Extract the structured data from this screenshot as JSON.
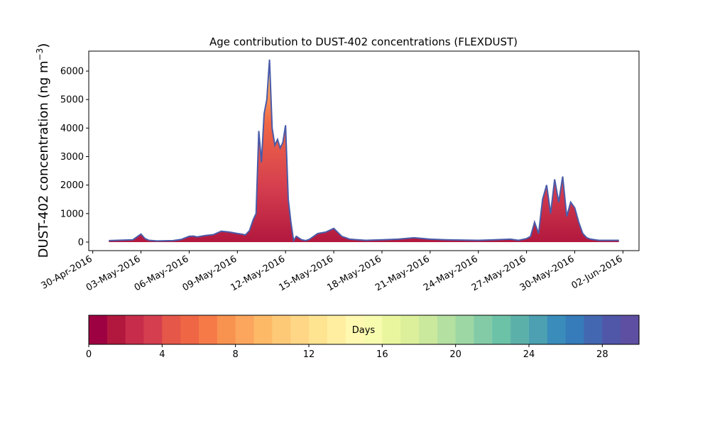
{
  "chart_data": {
    "type": "area",
    "title": "Age contribution to DUST-402 concentrations (FLEXDUST)",
    "ylabel": "DUST-402 concentration (ng m",
    "ylabel_sup": "−3",
    "ylabel_close": ")",
    "ylim": [
      -300,
      6700
    ],
    "yticks": [
      0,
      1000,
      2000,
      3000,
      4000,
      5000,
      6000
    ],
    "xlim": [
      "2016-04-29T18:00",
      "2016-06-03T00:00"
    ],
    "xticks": [
      "30-Apr-2016",
      "03-May-2016",
      "06-May-2016",
      "09-May-2016",
      "12-May-2016",
      "15-May-2016",
      "18-May-2016",
      "21-May-2016",
      "24-May-2016",
      "27-May-2016",
      "30-May-2016",
      "02-Jun-2016"
    ],
    "grid": false,
    "series_description": "stacked contributions by particle age (days 0-30)",
    "total": {
      "x": [
        "2016-05-01T00:00",
        "2016-05-01T12:00",
        "2016-05-02T00:00",
        "2016-05-02T12:00",
        "2016-05-03T00:00",
        "2016-05-03T06:00",
        "2016-05-03T12:00",
        "2016-05-04T00:00",
        "2016-05-05T00:00",
        "2016-05-05T12:00",
        "2016-05-06T00:00",
        "2016-05-06T06:00",
        "2016-05-06T12:00",
        "2016-05-07T00:00",
        "2016-05-07T12:00",
        "2016-05-08T00:00",
        "2016-05-08T12:00",
        "2016-05-09T00:00",
        "2016-05-09T06:00",
        "2016-05-09T12:00",
        "2016-05-09T18:00",
        "2016-05-10T00:00",
        "2016-05-10T04:00",
        "2016-05-10T08:00",
        "2016-05-10T12:00",
        "2016-05-10T16:00",
        "2016-05-10T20:00",
        "2016-05-11T00:00",
        "2016-05-11T04:00",
        "2016-05-11T08:00",
        "2016-05-11T12:00",
        "2016-05-11T16:00",
        "2016-05-11T20:00",
        "2016-05-12T00:00",
        "2016-05-12T04:00",
        "2016-05-12T08:00",
        "2016-05-12T12:00",
        "2016-05-12T16:00",
        "2016-05-13T00:00",
        "2016-05-13T06:00",
        "2016-05-13T12:00",
        "2016-05-14T00:00",
        "2016-05-14T12:00",
        "2016-05-15T00:00",
        "2016-05-15T12:00",
        "2016-05-16T00:00",
        "2016-05-16T12:00",
        "2016-05-17T00:00",
        "2016-05-18T00:00",
        "2016-05-19T00:00",
        "2016-05-20T00:00",
        "2016-05-21T00:00",
        "2016-05-22T00:00",
        "2016-05-23T00:00",
        "2016-05-24T00:00",
        "2016-05-25T00:00",
        "2016-05-26T00:00",
        "2016-05-26T12:00",
        "2016-05-27T00:00",
        "2016-05-27T06:00",
        "2016-05-27T12:00",
        "2016-05-27T18:00",
        "2016-05-28T00:00",
        "2016-05-28T06:00",
        "2016-05-28T12:00",
        "2016-05-28T18:00",
        "2016-05-29T00:00",
        "2016-05-29T06:00",
        "2016-05-29T12:00",
        "2016-05-29T18:00",
        "2016-05-30T00:00",
        "2016-05-30T06:00",
        "2016-05-30T12:00",
        "2016-05-30T18:00",
        "2016-05-31T00:00",
        "2016-05-31T12:00",
        "2016-06-01T00:00",
        "2016-06-01T12:00",
        "2016-06-01T18:00"
      ],
      "values": [
        50,
        60,
        70,
        80,
        280,
        120,
        60,
        40,
        50,
        90,
        200,
        210,
        180,
        230,
        260,
        380,
        350,
        300,
        280,
        250,
        400,
        800,
        1000,
        3900,
        2800,
        4500,
        5000,
        6400,
        4000,
        3400,
        3600,
        3300,
        3500,
        4100,
        1500,
        700,
        50,
        200,
        80,
        50,
        100,
        300,
        350,
        480,
        200,
        100,
        80,
        60,
        80,
        100,
        150,
        100,
        80,
        70,
        60,
        80,
        100,
        60,
        120,
        200,
        700,
        300,
        1500,
        2000,
        1000,
        2200,
        1400,
        2300,
        900,
        1400,
        1200,
        700,
        300,
        150,
        100,
        60,
        60,
        60,
        60
      ]
    },
    "colorbar": {
      "label": "Days",
      "ticks": [
        0,
        4,
        8,
        12,
        16,
        20,
        24,
        28
      ],
      "range": [
        0,
        30
      ],
      "colors": [
        "#9e0142",
        "#b2183e",
        "#c72d4b",
        "#d53e4f",
        "#e55749",
        "#ef6645",
        "#f57a48",
        "#f8924f",
        "#fca55c",
        "#fdb966",
        "#fdc977",
        "#fed685",
        "#fee491",
        "#ffeea0",
        "#fff8b0",
        "#f7fbae",
        "#eaf69e",
        "#dcf09b",
        "#cbe99d",
        "#b4e0a2",
        "#9dd7a4",
        "#82cba6",
        "#6cc2a6",
        "#5bb1a9",
        "#4ca0b1",
        "#3a8dbb",
        "#367bba",
        "#4367b0",
        "#5056a8",
        "#5e4fa2"
      ]
    }
  }
}
